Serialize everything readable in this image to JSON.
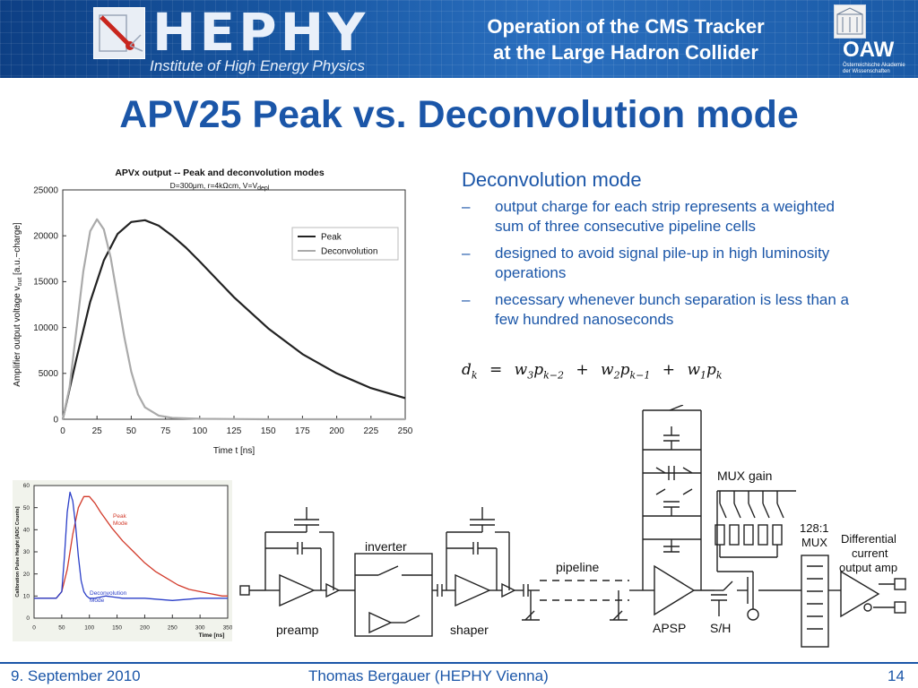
{
  "header": {
    "logo_text": "HEPHY",
    "logo_subtitle": "Institute of High Energy Physics",
    "title_line1": "Operation of the CMS Tracker",
    "title_line2": "at the Large Hadron Collider",
    "oaw_text": "OAW",
    "oaw_subtitle": "Österreichische Akademie der Wissenschaften"
  },
  "slide_title": "APV25 Peak vs. Deconvolution mode",
  "text": {
    "heading": "Deconvolution mode",
    "bullets": [
      "output charge for each strip represents a weighted sum of three consecutive pipeline cells",
      "designed to avoid signal pile-up in high luminosity operations",
      "necessary whenever bunch separation is less than a few hundred nanoseconds"
    ],
    "formula": {
      "lhs": "d",
      "lhs_sub": "k",
      "terms": [
        {
          "w": "w",
          "w_sub": "3",
          "p": "p",
          "p_sub": "k−2"
        },
        {
          "w": "w",
          "w_sub": "2",
          "p": "p",
          "p_sub": "k−1"
        },
        {
          "w": "w",
          "w_sub": "1",
          "p": "p",
          "p_sub": "k"
        }
      ]
    }
  },
  "chart_data": [
    {
      "type": "line",
      "title": "APVx output -- Peak and deconvolution modes",
      "subtitle": "D=300μm, r=4kΩcm, V=V",
      "subtitle_sub": "depl",
      "xlabel": "Time t [ns]",
      "ylabel": "Amplifier output voltage v",
      "ylabel_sub": "out",
      "ylabel_suffix": " [a.u.~charge]",
      "xlim": [
        0,
        250
      ],
      "ylim": [
        0,
        25000
      ],
      "xticks": [
        "0",
        "25",
        "50",
        "75",
        "100",
        "125",
        "150",
        "175",
        "200",
        "225",
        "250"
      ],
      "yticks": [
        "0",
        "5000",
        "10000",
        "15000",
        "20000",
        "25000"
      ],
      "legend_position": "top-right",
      "grid": false,
      "series": [
        {
          "name": "Peak",
          "color": "#222222",
          "x": [
            0,
            10,
            20,
            30,
            40,
            50,
            60,
            70,
            80,
            90,
            100,
            125,
            150,
            175,
            200,
            225,
            250
          ],
          "y": [
            0,
            6600,
            12800,
            17300,
            20200,
            21500,
            21700,
            21100,
            20000,
            18700,
            17200,
            13300,
            9900,
            7100,
            5000,
            3400,
            2300
          ]
        },
        {
          "name": "Deconvolution",
          "color": "#aaaaaa",
          "x": [
            0,
            5,
            10,
            15,
            20,
            25,
            30,
            35,
            40,
            45,
            50,
            55,
            60,
            70,
            80,
            100,
            150,
            200,
            250
          ],
          "y": [
            0,
            3500,
            9800,
            16100,
            20500,
            21800,
            20700,
            17600,
            13300,
            8900,
            5200,
            2700,
            1300,
            400,
            150,
            50,
            0,
            0,
            0
          ]
        }
      ]
    },
    {
      "type": "line",
      "ylabel": "Calibration Pulse Height [ADC Counts]",
      "xlabel": "Time [ns]",
      "xlim": [
        0,
        350
      ],
      "ylim": [
        0,
        60
      ],
      "xticks": [
        "0",
        "50",
        "100",
        "150",
        "200",
        "250",
        "300",
        "350"
      ],
      "yticks": [
        "0",
        "10",
        "20",
        "30",
        "40",
        "50",
        "60"
      ],
      "series": [
        {
          "name": "Peak Mode",
          "color": "#d23a2a",
          "x": [
            0,
            40,
            50,
            60,
            70,
            80,
            90,
            100,
            110,
            120,
            140,
            160,
            180,
            200,
            220,
            240,
            260,
            280,
            300,
            320,
            340,
            350
          ],
          "y": [
            9,
            9,
            12,
            22,
            38,
            50,
            55,
            55,
            52,
            48,
            41,
            35,
            30,
            25,
            21,
            18,
            15,
            13,
            12,
            11,
            10,
            10
          ]
        },
        {
          "name": "Deconvolution Mode",
          "color": "#2a3ec8",
          "x": [
            0,
            40,
            50,
            55,
            60,
            65,
            70,
            75,
            80,
            85,
            90,
            95,
            100,
            110,
            130,
            160,
            200,
            250,
            300,
            350
          ],
          "y": [
            9,
            9,
            12,
            28,
            48,
            57,
            53,
            42,
            28,
            17,
            12,
            10,
            9,
            9,
            10,
            9,
            9,
            8,
            9,
            9
          ]
        }
      ]
    }
  ],
  "circuit": {
    "labels": {
      "inverter": "inverter",
      "pipeline": "pipeline",
      "mux_gain": "MUX gain",
      "mux": "128:1\nMUX",
      "mux_line1": "128:1",
      "mux_line2": "MUX",
      "diff_line1": "Differential",
      "diff_line2": "current",
      "diff_line3": "output amp",
      "preamp": "preamp",
      "shaper": "shaper",
      "apsp": "APSP",
      "sh": "S/H"
    }
  },
  "footer": {
    "date": "9. September 2010",
    "author": "Thomas Bergauer (HEPHY Vienna)",
    "page": "14"
  }
}
